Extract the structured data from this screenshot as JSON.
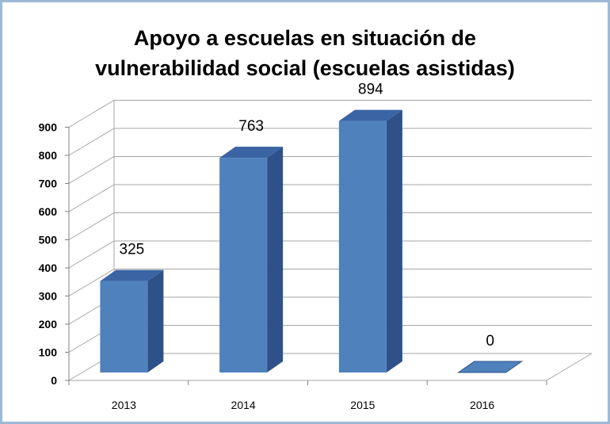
{
  "title_line1": "Apoyo a escuelas en situación de",
  "title_line2": "vulnerabilidad social (escuelas asistidas)",
  "chart_data": {
    "type": "bar",
    "title": "Apoyo a escuelas en situación de vulnerabilidad social (escuelas asistidas)",
    "categories": [
      "2013",
      "2014",
      "2015",
      "2016"
    ],
    "values": [
      325,
      763,
      894,
      0
    ],
    "data_labels": [
      "325",
      "763",
      "894",
      "0"
    ],
    "y_ticks": [
      "0",
      "100",
      "200",
      "300",
      "400",
      "500",
      "600",
      "700",
      "800",
      "900"
    ],
    "ylim": [
      0,
      900
    ],
    "grid": true,
    "style": "3d-column",
    "colors": {
      "bar_front": "#4f81bd",
      "bar_side": "#2f5189",
      "bar_top": "#3a64a4",
      "grid": "#a6a6a6",
      "frame_border": "#9db9d6"
    }
  }
}
